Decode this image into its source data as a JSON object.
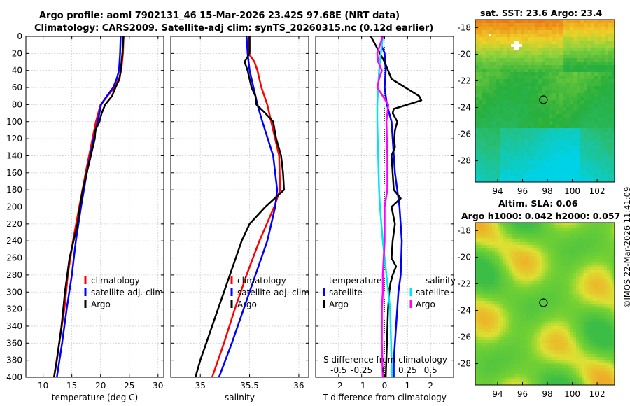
{
  "title": {
    "line1": "Argo profile: aoml 7902131_46 15-Mar-2026 23.42S 97.68E (NRT data)",
    "line2": "Climatology: CARS2009. Satellite-adj clim: synTS_20260315.nc (0.12d earlier)"
  },
  "credit": "©IMOS 22-Mar-2026 11:41:09",
  "colors": {
    "climatology": "#ff0000",
    "satellite": "#0000ff",
    "argo": "#000000",
    "sal_sat": "#00e5ee",
    "sal_argo": "#ff00ff"
  },
  "depth_ticks": [
    0,
    20,
    40,
    60,
    80,
    100,
    120,
    140,
    160,
    180,
    200,
    220,
    240,
    260,
    280,
    300,
    320,
    340,
    360,
    380,
    400
  ],
  "chart_data": [
    {
      "type": "line",
      "id": "temperature",
      "xlabel": "temperature (deg C)",
      "ylabel": "depth",
      "xlim": [
        7,
        31
      ],
      "ylim": [
        400,
        0
      ],
      "xticks": [
        10,
        15,
        20,
        25,
        30
      ],
      "xtick_labels": [
        "10",
        "15",
        "20",
        "25",
        "30"
      ],
      "legend": {
        "position": "right-center",
        "items": [
          "climatology",
          "satellite-adj. clim",
          "Argo"
        ]
      },
      "series": [
        {
          "name": "climatology",
          "color_key": "climatology",
          "depth": [
            0,
            20,
            40,
            50,
            60,
            70,
            80,
            100,
            120,
            160,
            200,
            240,
            280,
            320,
            360,
            400
          ],
          "values": [
            24,
            23.9,
            23.6,
            23.2,
            22.4,
            21.2,
            20,
            19.2,
            18.6,
            17.4,
            16.3,
            15.2,
            14.3,
            13.7,
            12.8,
            11.9
          ]
        },
        {
          "name": "satellite-adj. clim",
          "color_key": "satellite",
          "depth": [
            0,
            20,
            40,
            50,
            60,
            70,
            80,
            100,
            120,
            160,
            200,
            240,
            280,
            320,
            360,
            400
          ],
          "values": [
            23.5,
            23.4,
            23.2,
            22.8,
            22.2,
            21.1,
            20.1,
            19.5,
            18.8,
            17.6,
            16.6,
            15.7,
            15,
            14.1,
            13.3,
            12.4
          ]
        },
        {
          "name": "Argo",
          "color_key": "argo",
          "depth": [
            0,
            20,
            40,
            50,
            60,
            70,
            80,
            90,
            100,
            110,
            120,
            140,
            160,
            180,
            200,
            220,
            240,
            260,
            280,
            300,
            320,
            340,
            360,
            380,
            400
          ],
          "values": [
            24,
            23.8,
            23.5,
            23.3,
            22.6,
            22,
            20.8,
            20.2,
            19.8,
            19.1,
            19,
            18.3,
            17.6,
            16.9,
            16.4,
            16,
            15.3,
            14.6,
            14.2,
            13.8,
            13.5,
            13.2,
            12.8,
            12.4,
            11.9
          ]
        }
      ]
    },
    {
      "type": "line",
      "id": "salinity",
      "xlabel": "salinity",
      "xlim": [
        34.7,
        36.1
      ],
      "ylim": [
        400,
        0
      ],
      "xticks": [
        35,
        35.5,
        36
      ],
      "xtick_labels": [
        "35",
        "35.5",
        "36"
      ],
      "legend": {
        "position": "right-center",
        "items": [
          "climatology",
          "satellite-adj. clim",
          "Argo"
        ]
      },
      "series": [
        {
          "name": "climatology",
          "color_key": "climatology",
          "depth": [
            0,
            20,
            30,
            40,
            50,
            60,
            80,
            100,
            140,
            180,
            200,
            240,
            280,
            320,
            360,
            400
          ],
          "values": [
            35.49,
            35.49,
            35.55,
            35.58,
            35.6,
            35.62,
            35.68,
            35.72,
            35.8,
            35.81,
            35.75,
            35.6,
            35.47,
            35.35,
            35.24,
            35.12
          ]
        },
        {
          "name": "satellite-adj. clim",
          "color_key": "satellite",
          "depth": [
            0,
            20,
            40,
            60,
            80,
            100,
            140,
            180,
            200,
            240,
            280,
            320,
            360,
            400
          ],
          "values": [
            35.47,
            35.48,
            35.5,
            35.54,
            35.58,
            35.63,
            35.74,
            35.78,
            35.76,
            35.68,
            35.56,
            35.44,
            35.32,
            35.19
          ]
        },
        {
          "name": "Argo",
          "color_key": "argo",
          "depth": [
            0,
            20,
            30,
            40,
            50,
            60,
            70,
            80,
            90,
            100,
            120,
            140,
            160,
            180,
            200,
            220,
            240,
            260,
            280,
            300,
            320,
            340,
            360,
            380,
            400
          ],
          "values": [
            35.5,
            35.5,
            35.45,
            35.48,
            35.5,
            35.52,
            35.56,
            35.57,
            35.66,
            35.74,
            35.77,
            35.82,
            35.84,
            35.85,
            35.66,
            35.5,
            35.42,
            35.36,
            35.3,
            35.24,
            35.18,
            35.12,
            35.06,
            35.0,
            34.95
          ]
        }
      ]
    },
    {
      "type": "line",
      "id": "differences",
      "xlabel": "T difference from climatology",
      "xlabel_top": "S difference from climatology",
      "xlim": [
        -3,
        3
      ],
      "ylim": [
        400,
        0
      ],
      "xticks": [
        -2,
        -1,
        0,
        1,
        2
      ],
      "xtick_labels": [
        "-2",
        "-1",
        "0",
        "1",
        "2"
      ],
      "top_xticks": [
        -0.5,
        -0.25,
        0,
        0.25,
        0.5
      ],
      "top_xtick_labels": [
        "-0.5",
        "-0.25",
        "0",
        "0.25",
        "0.5"
      ],
      "salinity_scale": 4,
      "legend": {
        "position": "right-center",
        "headers": [
          "temperature",
          "salinity"
        ],
        "items": [
          "satellite",
          "Argo",
          "satellite",
          "Argo"
        ]
      },
      "series": [
        {
          "name": "T satellite",
          "quantity": "T",
          "color_key": "satellite",
          "depth": [
            0,
            10,
            20,
            40,
            60,
            80,
            100,
            120,
            160,
            200,
            240,
            280,
            300,
            340,
            380,
            400
          ],
          "values": [
            -0.1,
            -0.15,
            0,
            0.05,
            0,
            0.1,
            0.3,
            0.35,
            0.45,
            0.65,
            0.75,
            0.7,
            0.6,
            0.5,
            0.4,
            0.4
          ]
        },
        {
          "name": "T Argo",
          "quantity": "T",
          "color_key": "argo",
          "depth": [
            0,
            10,
            20,
            30,
            40,
            50,
            60,
            70,
            75,
            80,
            85,
            90,
            100,
            110,
            120,
            130,
            140,
            160,
            180,
            190,
            200,
            220,
            240,
            260,
            270,
            280,
            290,
            300,
            320,
            360,
            400
          ],
          "values": [
            -0.6,
            -0.4,
            -0.2,
            0,
            0.15,
            0.3,
            0.9,
            1.5,
            1.6,
            1,
            0.4,
            0.35,
            0.55,
            0.45,
            0.42,
            0.45,
            0.3,
            0.35,
            0.4,
            0.7,
            0.3,
            0.45,
            0.35,
            0.3,
            0.5,
            0.35,
            0.25,
            0.2,
            0.15,
            0.1,
            0.05
          ]
        },
        {
          "name": "S satellite",
          "quantity": "S",
          "color_key": "sal_sat",
          "depth": [
            0,
            20,
            40,
            60,
            80,
            100,
            140,
            180,
            200,
            240,
            280,
            300,
            320,
            360,
            400
          ],
          "values": [
            -0.02,
            -0.04,
            -0.06,
            -0.07,
            -0.08,
            -0.08,
            -0.07,
            -0.06,
            -0.05,
            -0.02,
            0.02,
            0.04,
            0.06,
            0.07,
            0.08
          ]
        },
        {
          "name": "S Argo",
          "quantity": "S",
          "color_key": "sal_argo",
          "depth": [
            0,
            10,
            20,
            30,
            40,
            50,
            60,
            70,
            80,
            100,
            140,
            180,
            200,
            240,
            280,
            300,
            320,
            360,
            400
          ],
          "values": [
            -0.02,
            -0.05,
            -0.08,
            -0.07,
            -0.03,
            -0.06,
            -0.08,
            -0.02,
            0.04,
            0.02,
            0.03,
            0.03,
            0.0,
            0.0,
            -0.02,
            -0.02,
            -0.03,
            -0.03,
            -0.02
          ]
        }
      ]
    },
    {
      "type": "heatmap",
      "id": "sst_map",
      "title": "sat. SST: 23.6 Argo: 23.4",
      "xlim": [
        92.2,
        103.4
      ],
      "ylim": [
        -29.6,
        -17.4
      ],
      "xticks": [
        94,
        96,
        98,
        100,
        102
      ],
      "yticks": [
        -18,
        -20,
        -22,
        -24,
        -26,
        -28
      ],
      "xtick_labels": [
        "94",
        "96",
        "98",
        "100",
        "102"
      ],
      "ytick_labels": [
        "-18",
        "-20",
        "-22",
        "-24",
        "-26",
        "-28"
      ],
      "float_position": [
        97.68,
        -23.42
      ]
    },
    {
      "type": "heatmap",
      "id": "sla_map",
      "title_line1": "Altim. SLA: 0.06",
      "title_line2": "Argo h1000: 0.042 h2000: 0.057",
      "xlim": [
        92.2,
        103.4
      ],
      "ylim": [
        -29.6,
        -17.4
      ],
      "xticks": [
        94,
        96,
        98,
        100,
        102
      ],
      "yticks": [
        -18,
        -20,
        -22,
        -24,
        -26,
        -28
      ],
      "xtick_labels": [
        "94",
        "96",
        "98",
        "100",
        "102"
      ],
      "ytick_labels": [
        "-18",
        "-20",
        "-22",
        "-24",
        "-26",
        "-28"
      ],
      "float_position": [
        97.68,
        -23.42
      ]
    }
  ]
}
